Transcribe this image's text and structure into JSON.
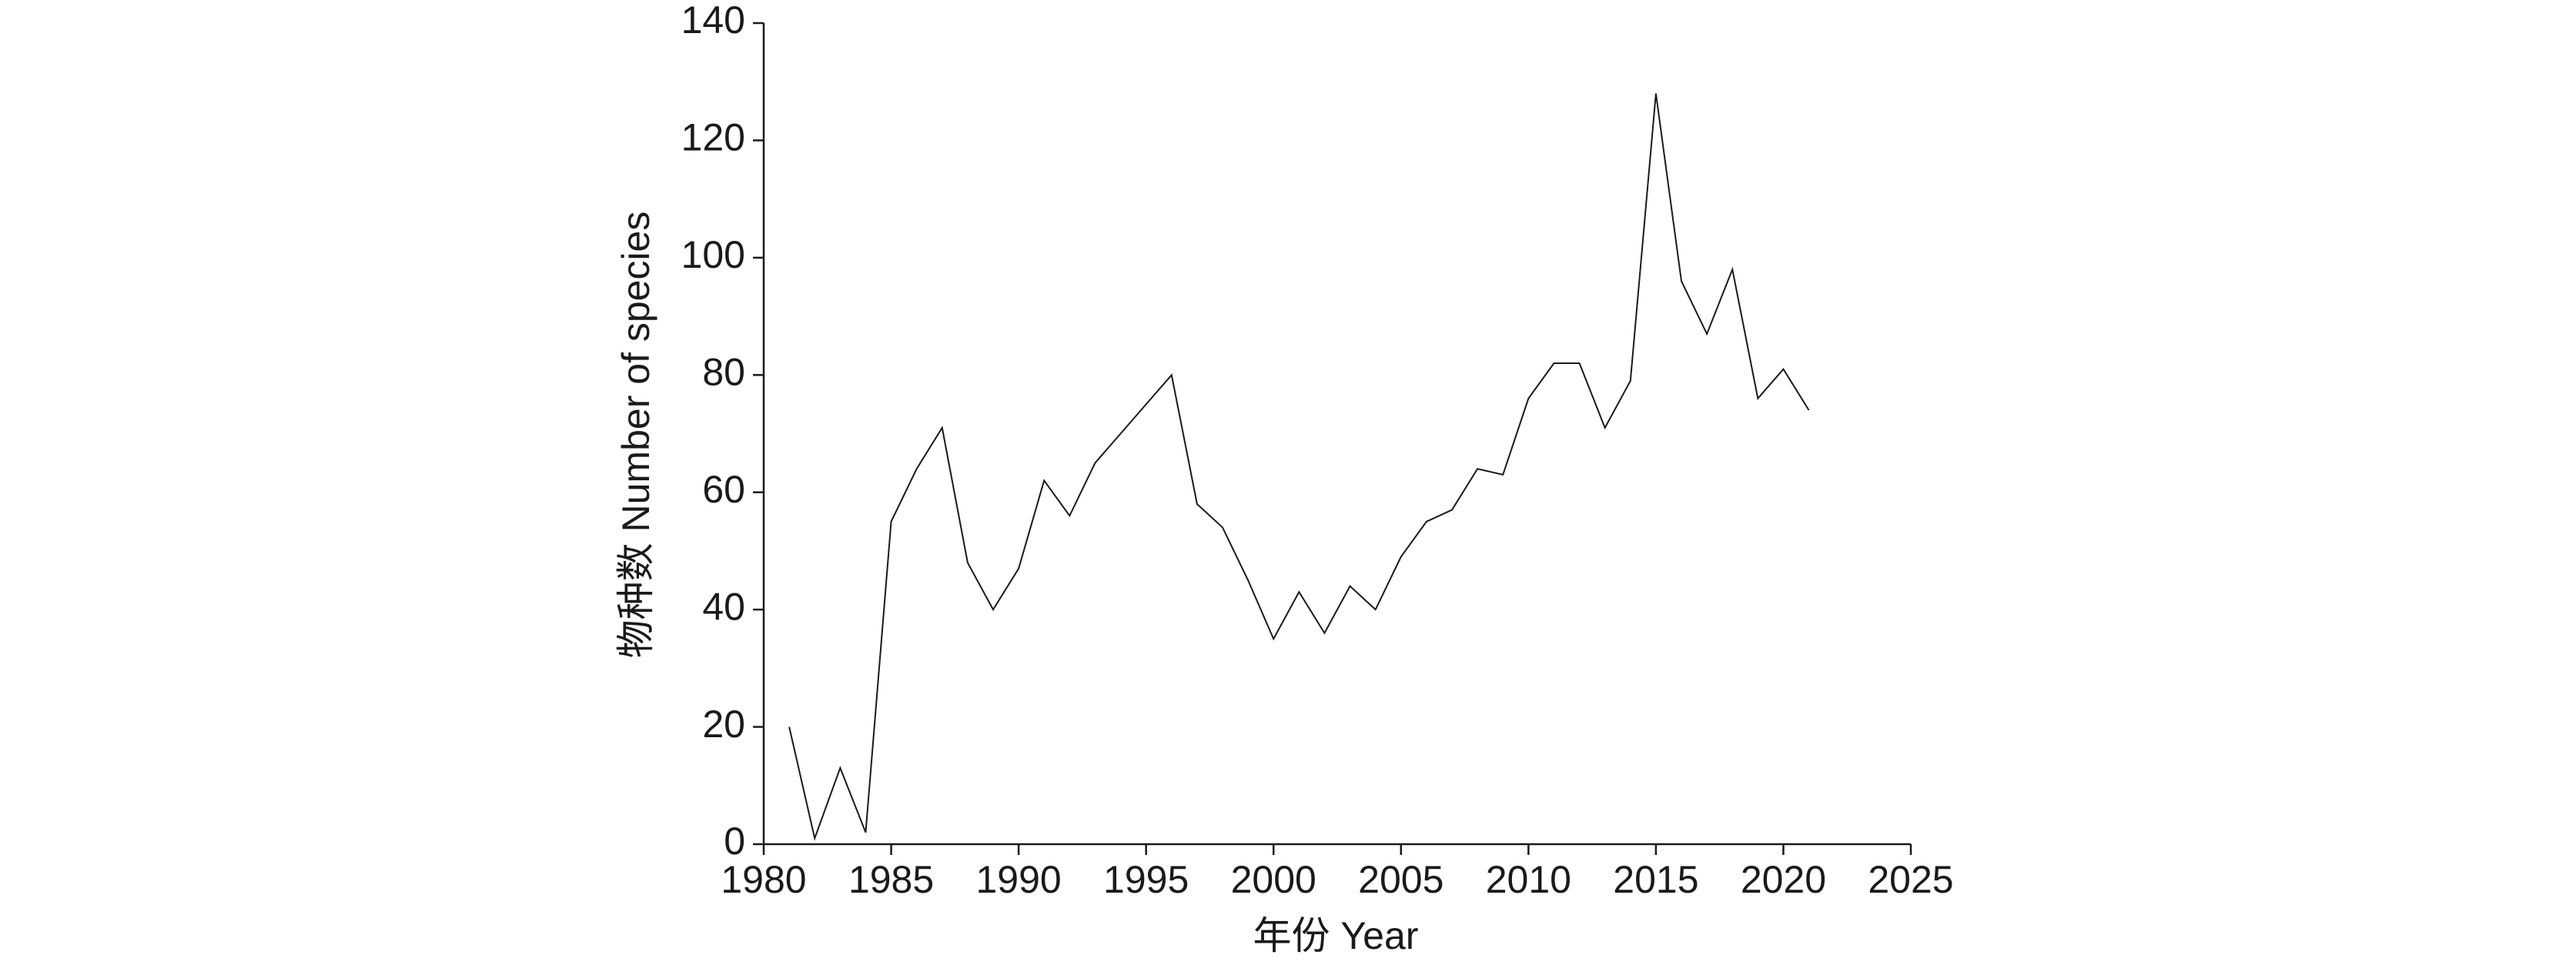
{
  "chart_data": {
    "type": "line",
    "x_label": "年份 Year",
    "y_label": "物种数 Number of species",
    "x": [
      1981,
      1982,
      1983,
      1984,
      1985,
      1986,
      1987,
      1988,
      1989,
      1990,
      1991,
      1992,
      1993,
      1994,
      1995,
      1996,
      1997,
      1998,
      1999,
      2000,
      2001,
      2002,
      2003,
      2004,
      2005,
      2006,
      2007,
      2008,
      2009,
      2010,
      2011,
      2012,
      2013,
      2014,
      2015,
      2016,
      2017,
      2018,
      2019,
      2020,
      2021
    ],
    "series": [
      {
        "name": "Number of species",
        "color": "#1a1a1a",
        "values": [
          20,
          1,
          13,
          2,
          55,
          64,
          71,
          48,
          40,
          47,
          62,
          56,
          65,
          70,
          75,
          80,
          58,
          54,
          45,
          35,
          43,
          36,
          44,
          40,
          49,
          55,
          57,
          64,
          63,
          76,
          82,
          82,
          71,
          79,
          128,
          96,
          87,
          98,
          76,
          81,
          74
        ]
      }
    ],
    "xlim": [
      1980,
      2025
    ],
    "xticks": [
      1980,
      1985,
      1990,
      1995,
      2000,
      2005,
      2010,
      2015,
      2020,
      2025
    ],
    "ylim": [
      0,
      140
    ],
    "yticks": [
      0,
      20,
      40,
      60,
      80,
      100,
      120,
      140
    ],
    "grid": false
  }
}
